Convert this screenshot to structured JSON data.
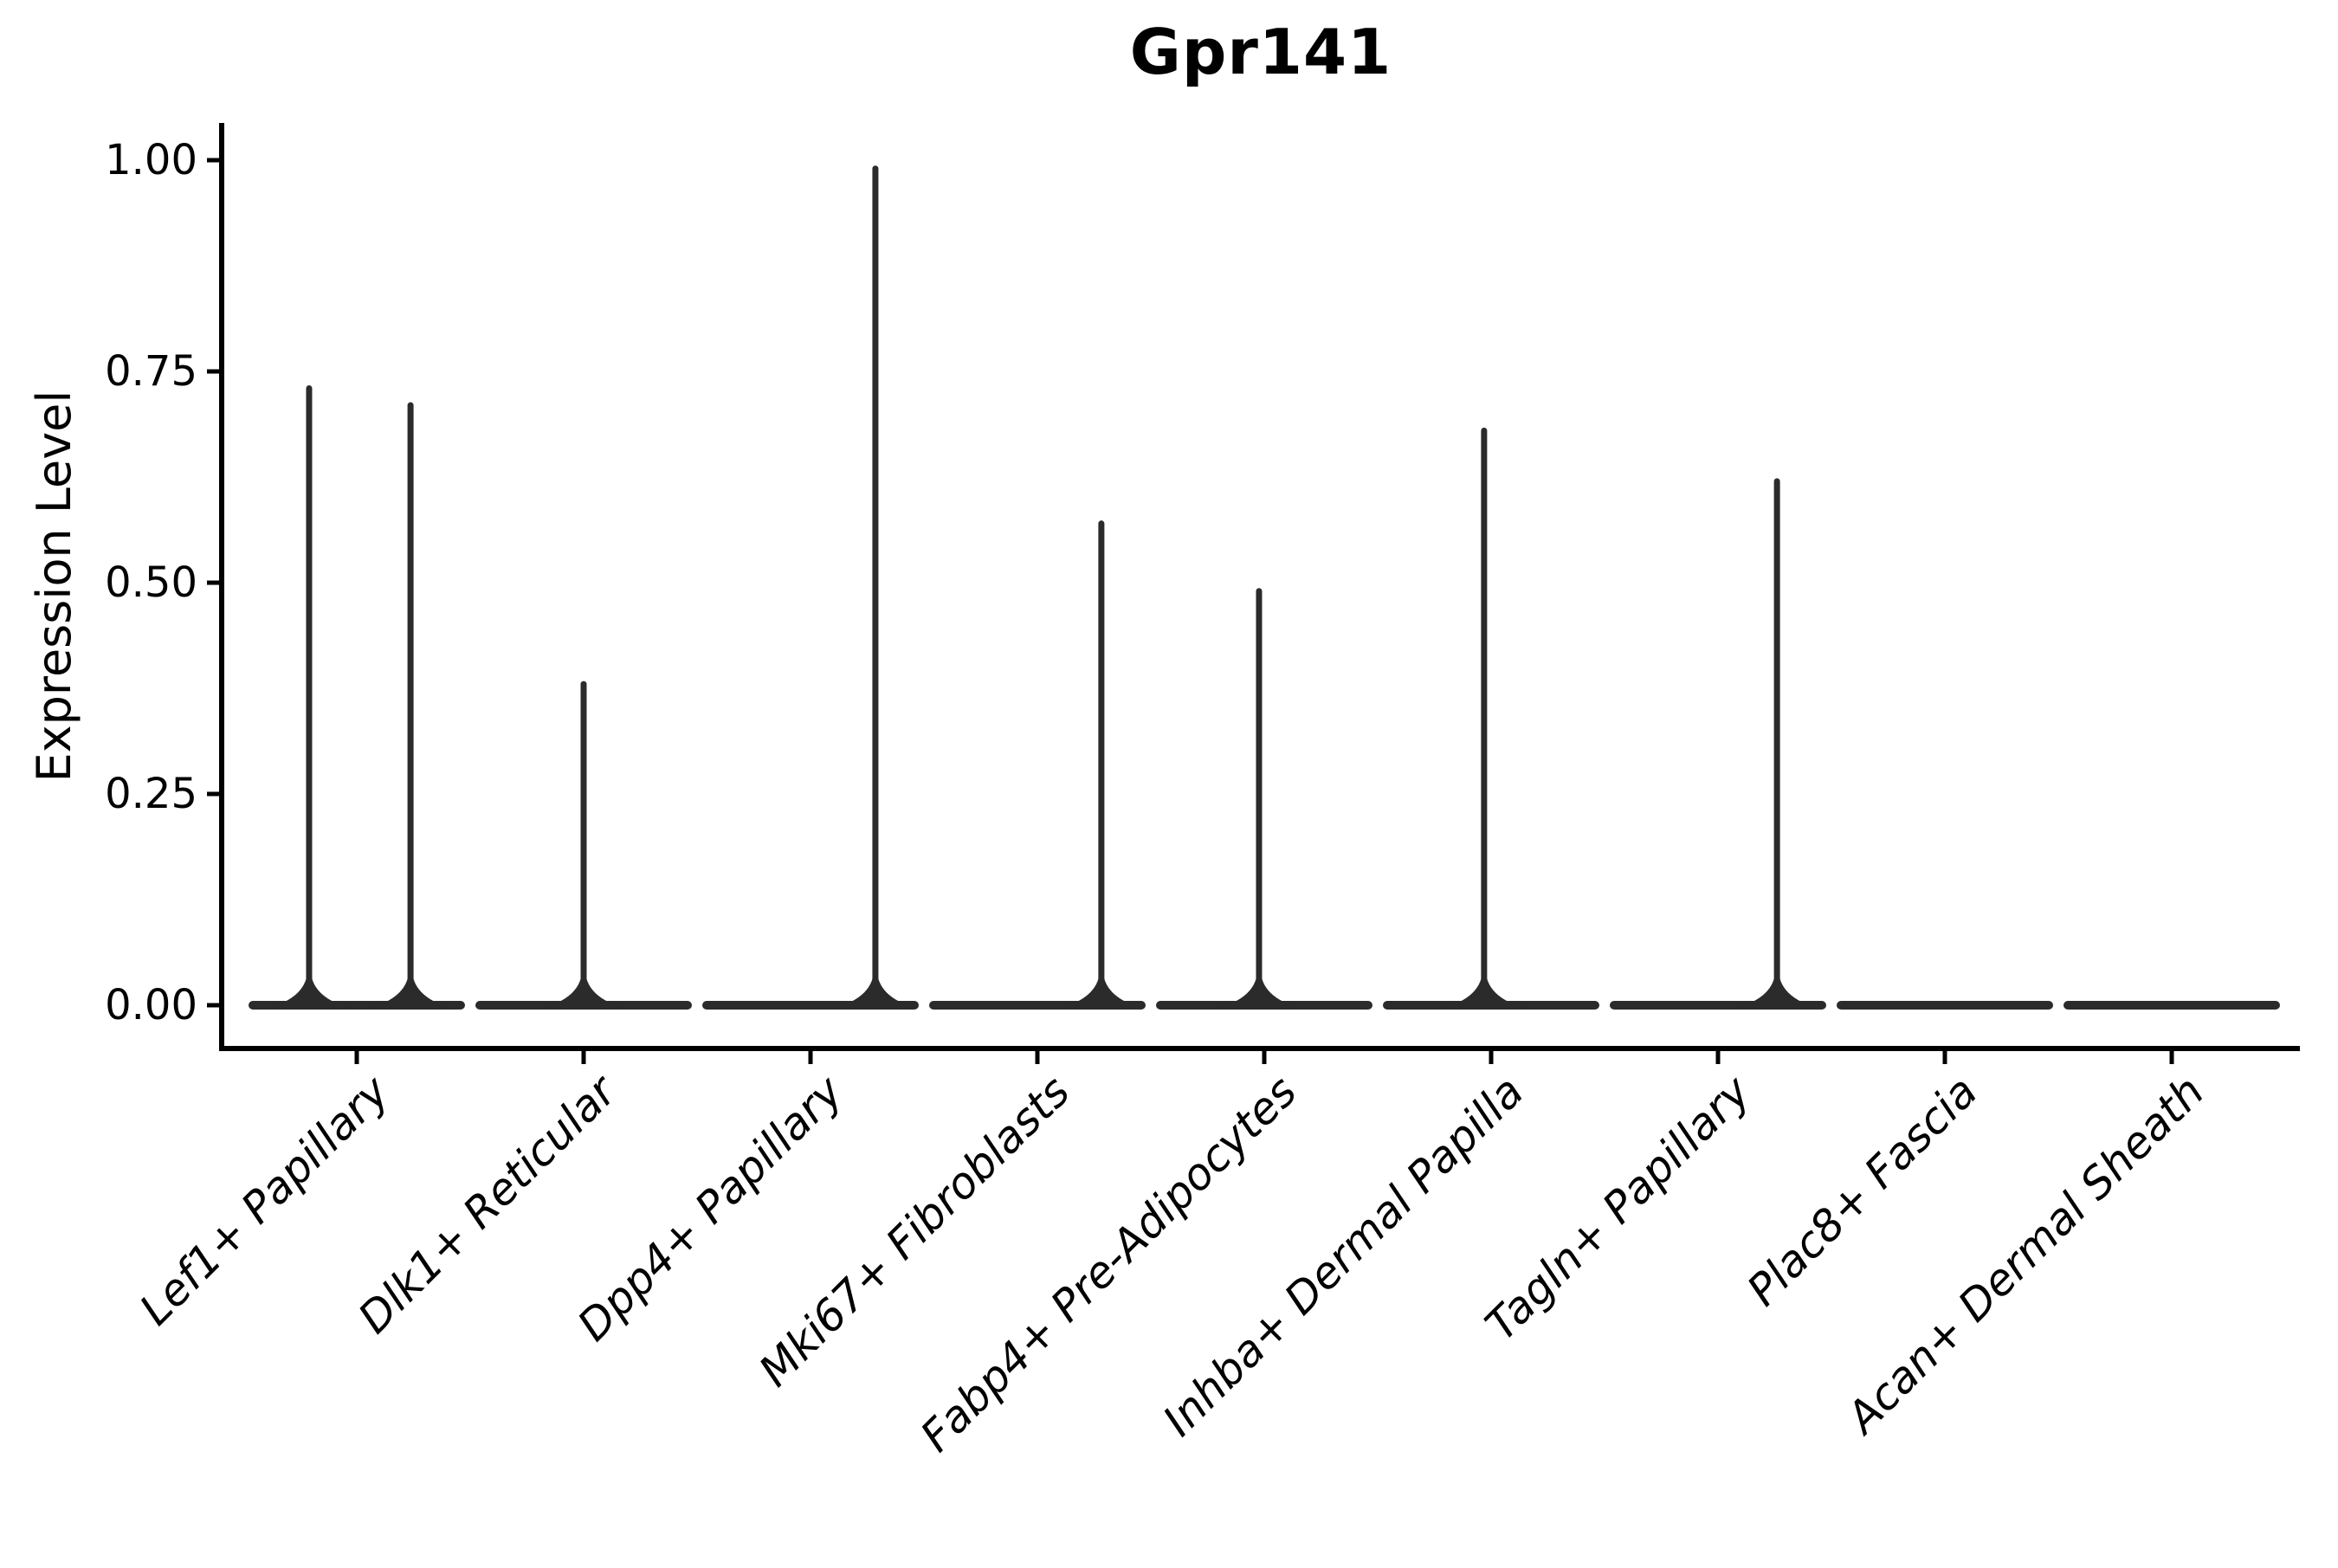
{
  "title": "Gpr141",
  "y_axis": {
    "label": "Expression Level",
    "ticks": [
      "1.00",
      "0.75",
      "0.50",
      "0.25",
      "0.00"
    ],
    "tick_values": [
      1.0,
      0.75,
      0.5,
      0.25,
      0.0
    ]
  },
  "x_axis": {
    "categories": [
      "Lef1+ Papillary",
      "Dlk1+ Reticular",
      "Dpp4+ Papillary",
      "Mki67+ Fibroblasts",
      "Fabp4+ Pre-Adipocytes",
      "Inhba+ Dermal Papilla",
      "Tagln+ Papillary",
      "Plac8+ Fascia",
      "Acan+ Dermal Sheath"
    ]
  },
  "colors": {
    "violin": "#2b2b2b",
    "axis": "#000000",
    "text": "#000000",
    "background": "#ffffff"
  },
  "chart_data": {
    "type": "violin",
    "title": "Gpr141",
    "xlabel": "",
    "ylabel": "Expression Level",
    "ylim": [
      0,
      1.04
    ],
    "yticks": [
      0,
      0.25,
      0.5,
      0.75,
      1.0
    ],
    "grid": false,
    "legend_position": "none",
    "categories": [
      "Lef1+ Papillary",
      "Dlk1+ Reticular",
      "Dpp4+ Papillary",
      "Mki67+ Fibroblasts",
      "Fabp4+ Pre-Adipocytes",
      "Inhba+ Dermal Papilla",
      "Tagln+ Papillary",
      "Plac8+ Fascia",
      "Acan+ Dermal Sheath"
    ],
    "violins": [
      {
        "category": "Lef1+ Papillary",
        "max_expression": 0.73,
        "spikes": [
          {
            "x_offset_frac": -0.21,
            "value": 0.73
          },
          {
            "x_offset_frac": 0.237,
            "value": 0.71
          }
        ]
      },
      {
        "category": "Dlk1+ Reticular",
        "max_expression": 0.38,
        "spikes": [
          {
            "x_offset_frac": 0.0,
            "value": 0.38
          }
        ]
      },
      {
        "category": "Dpp4+ Papillary",
        "max_expression": 0.99,
        "spikes": [
          {
            "x_offset_frac": 0.286,
            "value": 0.99
          }
        ]
      },
      {
        "category": "Mki67+ Fibroblasts",
        "max_expression": 0.57,
        "spikes": [
          {
            "x_offset_frac": 0.282,
            "value": 0.57
          }
        ]
      },
      {
        "category": "Fabp4+ Pre-Adipocytes",
        "max_expression": 0.49,
        "spikes": [
          {
            "x_offset_frac": -0.023,
            "value": 0.49
          }
        ]
      },
      {
        "category": "Inhba+ Dermal Papilla",
        "max_expression": 0.68,
        "spikes": [
          {
            "x_offset_frac": -0.031,
            "value": 0.68
          }
        ]
      },
      {
        "category": "Tagln+ Papillary",
        "max_expression": 0.62,
        "spikes": [
          {
            "x_offset_frac": 0.26,
            "value": 0.62
          }
        ]
      },
      {
        "category": "Plac8+ Fascia",
        "max_expression": 0.0,
        "spikes": []
      },
      {
        "category": "Acan+ Dermal Sheath",
        "max_expression": 0.0,
        "spikes": []
      }
    ]
  }
}
